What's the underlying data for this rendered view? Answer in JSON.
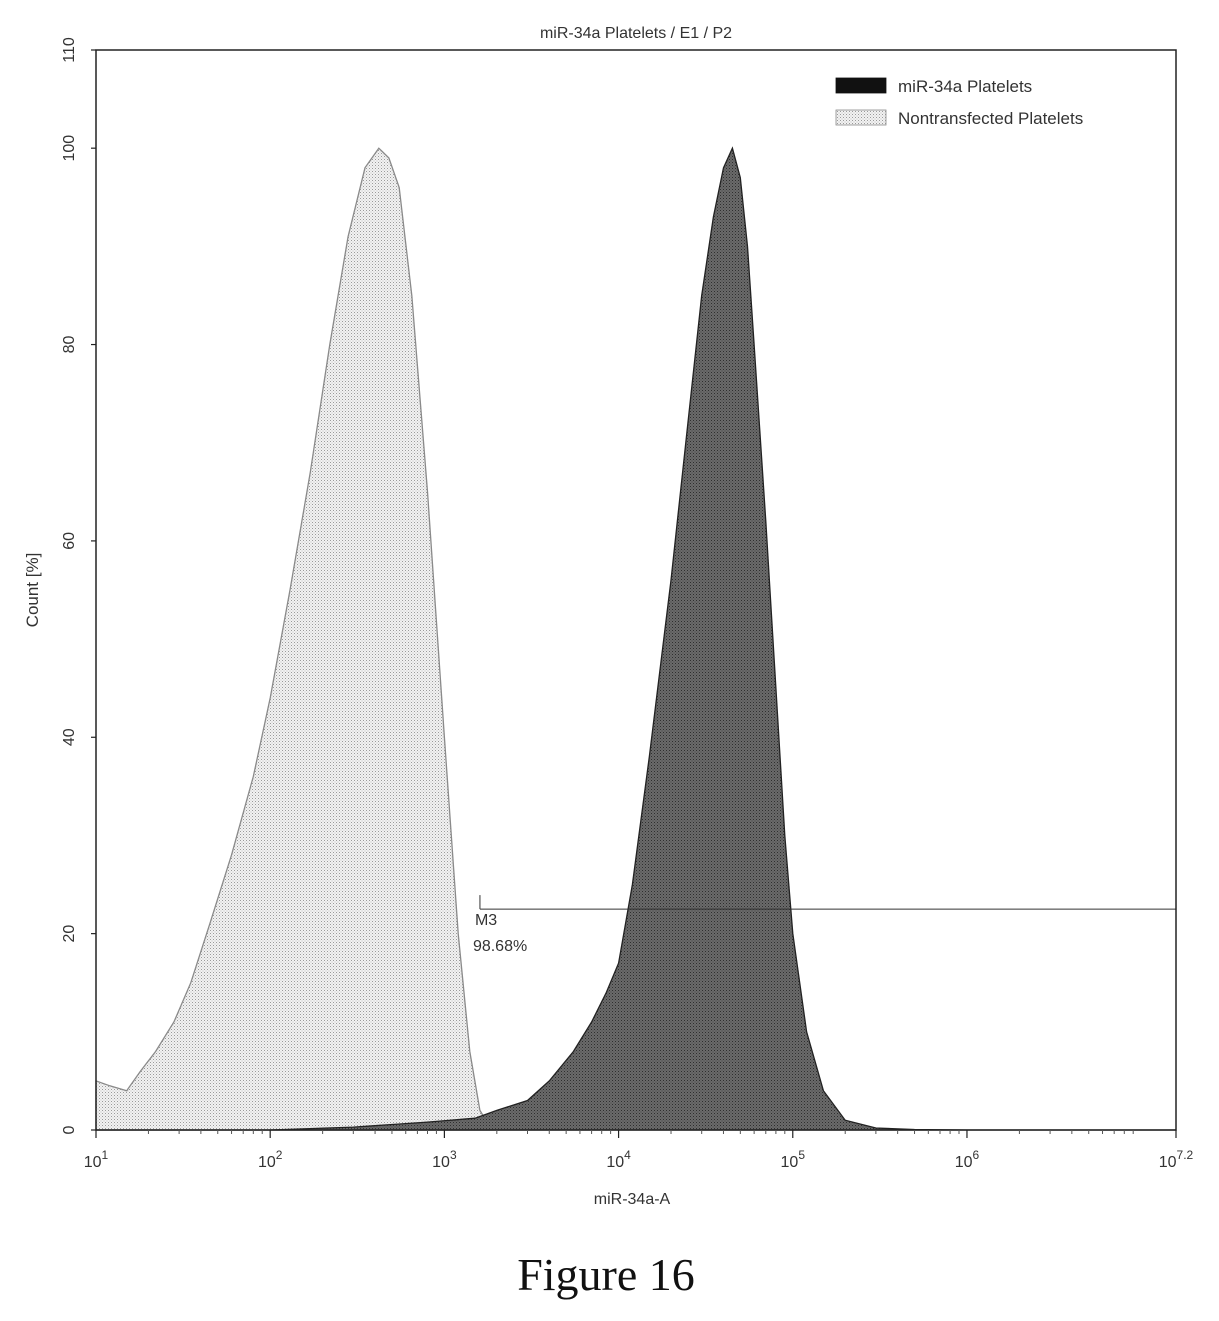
{
  "chart_data": {
    "type": "area",
    "title": "miR-34a Platelets / E1 / P2",
    "xlabel": "miR-34a-A",
    "ylabel": "Count [%]",
    "x_scale": "log",
    "xlim": [
      10,
      15848932
    ],
    "ylim": [
      0,
      110
    ],
    "x_ticks": [
      {
        "value": 10,
        "base": "10",
        "exp": "1"
      },
      {
        "value": 100,
        "base": "10",
        "exp": "2"
      },
      {
        "value": 1000,
        "base": "10",
        "exp": "3"
      },
      {
        "value": 10000,
        "base": "10",
        "exp": "4"
      },
      {
        "value": 100000,
        "base": "10",
        "exp": "5"
      },
      {
        "value": 1000000,
        "base": "10",
        "exp": "6"
      },
      {
        "value": 15848932,
        "base": "10",
        "exp": "7.2"
      }
    ],
    "y_ticks": [
      "0",
      "20",
      "40",
      "60",
      "80",
      "100",
      "110"
    ],
    "legend_position": "top-right",
    "series": [
      {
        "name": "miR-34a Platelets",
        "color": "#555555",
        "pattern": "dark-dotted",
        "x": [
          10,
          100,
          300,
          800,
          1500,
          2000,
          3000,
          4000,
          5500,
          7000,
          8500,
          10000,
          12000,
          15000,
          20000,
          25000,
          30000,
          35000,
          40000,
          45000,
          50000,
          55000,
          60000,
          70000,
          80000,
          90000,
          100000,
          120000,
          150000,
          200000,
          300000,
          500000,
          1000000,
          15848932
        ],
        "y": [
          0,
          0,
          0.3,
          0.8,
          1.2,
          2,
          3,
          5,
          8,
          11,
          14,
          17,
          25,
          38,
          56,
          72,
          85,
          93,
          98,
          100,
          97,
          90,
          80,
          62,
          45,
          30,
          20,
          10,
          4,
          1,
          0.2,
          0.05,
          0,
          0
        ]
      },
      {
        "name": "Nontransfected Platelets",
        "color": "#aaaaaa",
        "pattern": "light-dotted",
        "x": [
          10,
          12,
          15,
          18,
          22,
          28,
          35,
          45,
          60,
          80,
          100,
          130,
          170,
          220,
          280,
          350,
          420,
          480,
          550,
          650,
          800,
          1000,
          1200,
          1400,
          1600,
          1800,
          2000
        ],
        "y": [
          5,
          4.5,
          4,
          6,
          8,
          11,
          15,
          21,
          28,
          36,
          44,
          55,
          67,
          80,
          91,
          98,
          100,
          99,
          96,
          85,
          65,
          40,
          20,
          8,
          2,
          0.5,
          0
        ]
      }
    ],
    "marker": {
      "label": "M3",
      "value": "98.68%",
      "x_start": 1600,
      "x_end": 15848932,
      "y": 22.5
    }
  },
  "figure_caption": "Figure 16"
}
